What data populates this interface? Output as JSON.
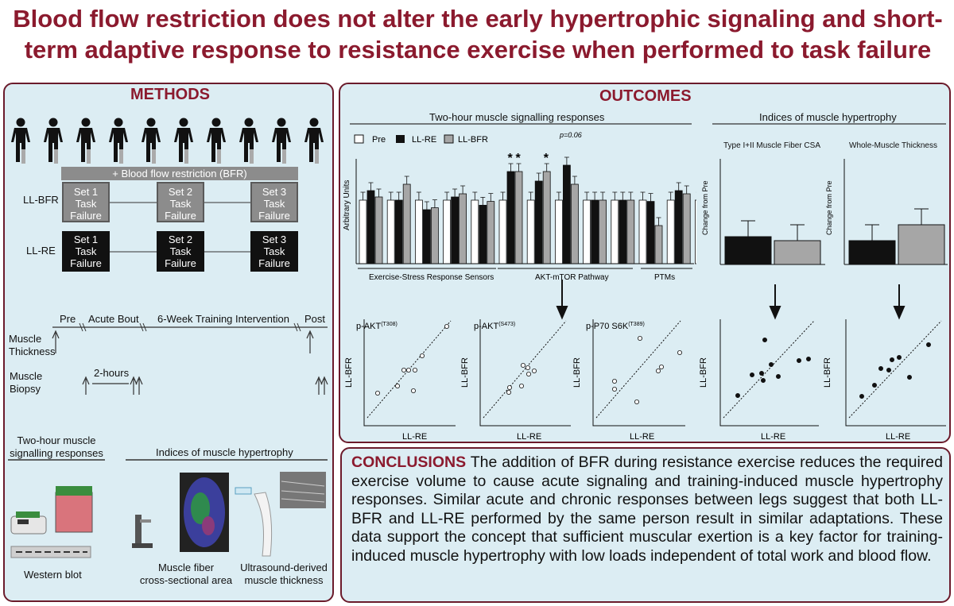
{
  "title": "Blood flow restriction does not alter the early hypertrophic signaling and short-term adaptive response to resistance exercise when performed to task failure",
  "methods": {
    "heading": "METHODS",
    "bfr_bar": "+ Blood flow restriction (BFR)",
    "row_bfr": "LL-BFR",
    "row_re": "LL-RE",
    "sets": [
      {
        "l1": "Set 1",
        "l2": "Task",
        "l3": "Failure"
      },
      {
        "l1": "Set 2",
        "l2": "Task",
        "l3": "Failure"
      },
      {
        "l1": "Set 3",
        "l2": "Task",
        "l3": "Failure"
      }
    ],
    "timeline": {
      "pre": "Pre",
      "acute": "Acute Bout",
      "training": "6-Week Training Intervention",
      "post": "Post"
    },
    "muscle_thickness": [
      "Muscle",
      "Thickness"
    ],
    "muscle_biopsy": [
      "Muscle",
      "Biopsy"
    ],
    "two_hours": "2-hours",
    "signalling_heading": [
      "Two-hour muscle",
      "signalling responses"
    ],
    "hypertrophy_heading": "Indices of muscle hypertrophy",
    "western_blot": "Western blot",
    "fiber_csa": [
      "Muscle fiber",
      "cross-sectional area"
    ],
    "ultrasound": [
      "Ultrasound-derived",
      "muscle thickness"
    ]
  },
  "outcomes": {
    "heading": "OUTCOMES",
    "signalling_title": "Two-hour muscle signalling responses",
    "hypertrophy_title": "Indices of muscle hypertrophy",
    "legend": [
      "Pre",
      "LL-RE",
      "LL-BFR"
    ],
    "ylabel": "Arbitrary Units",
    "groups": [
      "Exercise-Stress Response Sensors",
      "AKT-mTOR Pathway",
      "PTMs"
    ],
    "pvalue": "p=0.06",
    "csa_title": "Type I+II Muscle Fiber CSA",
    "thickness_title": "Whole-Muscle Thickness",
    "change_label": "Change from Pre",
    "scatter_titles": [
      "p-AKT",
      "p-AKT",
      "p-P70 S6K"
    ],
    "scatter_sups": [
      "(T308)",
      "(S473)",
      "(T389)"
    ],
    "scatter_xlabel": "LL-RE",
    "scatter_ylabel": "LL-BFR"
  },
  "chart_data": {
    "type": "bar",
    "series": [
      {
        "name": "Pre",
        "values": [
          1.0,
          1.0,
          1.0,
          1.0,
          1.0,
          1.0,
          1.0,
          1.0,
          1.0,
          1.0,
          1.0,
          1.0,
          1.0,
          1.0
        ]
      },
      {
        "name": "LL-RE",
        "values": [
          1.15,
          1.0,
          0.85,
          1.05,
          0.92,
          1.45,
          1.3,
          1.55,
          1.0,
          1.0,
          0.98,
          1.15,
          1.02,
          0.98
        ]
      },
      {
        "name": "LL-BFR",
        "values": [
          1.05,
          1.25,
          0.88,
          1.1,
          0.98,
          1.45,
          1.45,
          1.25,
          1.0,
          1.0,
          0.6,
          1.1,
          1.0,
          0.98
        ]
      }
    ],
    "groups": [
      "Exercise-Stress Response Sensors",
      "AKT-mTOR Pathway",
      "PTMs"
    ],
    "annotations": [
      "*",
      "*",
      "*",
      "p=0.06"
    ],
    "ylabel": "Arbitrary Units",
    "hypertrophy": {
      "csa": {
        "title": "Type I+II Muscle Fiber CSA",
        "values": [
          0.35,
          0.3
        ]
      },
      "thickness": {
        "title": "Whole-Muscle Thickness",
        "values": [
          0.3,
          0.5
        ]
      }
    }
  },
  "conclusions": {
    "keyword": "CONCLUSIONS",
    "text": "The addition of BFR during resistance exercise reduces the required exercise volume to cause acute signaling and training-induced muscle hypertrophy responses. Similar acute and chronic responses between legs suggest that both LL-BFR and LL-RE performed by the same person result in similar adaptations. These data support the concept that sufficient muscular exertion is a key factor for training-induced muscle hypertrophy with low loads independent of total work and blood flow."
  },
  "colors": {
    "accent": "#8b1a2e",
    "panel_bg": "#dcedf3",
    "gray_bar": "#a6a6a6"
  }
}
